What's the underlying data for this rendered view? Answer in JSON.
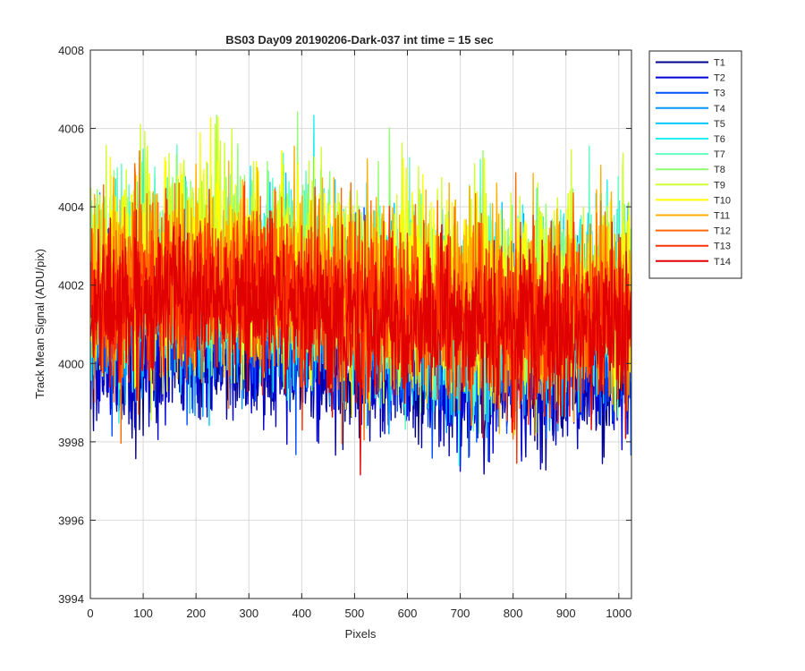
{
  "chart_data": {
    "type": "line",
    "title": "BS03 Day09 20190206-Dark-037 int time = 15 sec",
    "xlabel": "Pixels",
    "ylabel": "Track Mean Signal (ADU/pix)",
    "xlim": [
      0,
      1024
    ],
    "ylim": [
      3994,
      4008
    ],
    "xticks": [
      "0",
      "100",
      "200",
      "300",
      "400",
      "500",
      "600",
      "700",
      "800",
      "900",
      "1000"
    ],
    "yticks": [
      "3994",
      "3996",
      "3998",
      "4000",
      "4002",
      "4004",
      "4006",
      "4008"
    ],
    "grid": true,
    "legend_position": "outside-top-right",
    "n_points": 1024,
    "series": [
      {
        "name": "T1",
        "color": "#00008f",
        "mean": 3999.9,
        "noise": 0.85
      },
      {
        "name": "T2",
        "color": "#0000d6",
        "mean": 4000.0,
        "noise": 0.85
      },
      {
        "name": "T3",
        "color": "#0050ff",
        "mean": 4000.8,
        "noise": 0.95
      },
      {
        "name": "T4",
        "color": "#0096ff",
        "mean": 4001.2,
        "noise": 1.05
      },
      {
        "name": "T5",
        "color": "#00c8ff",
        "mean": 4001.6,
        "noise": 1.1
      },
      {
        "name": "T6",
        "color": "#20f0f0",
        "mean": 4001.8,
        "noise": 1.15
      },
      {
        "name": "T7",
        "color": "#60ffc0",
        "mean": 4002.0,
        "noise": 1.15
      },
      {
        "name": "T8",
        "color": "#90ff70",
        "mean": 4002.1,
        "noise": 1.2
      },
      {
        "name": "T9",
        "color": "#d0ff30",
        "mean": 4002.2,
        "noise": 1.2
      },
      {
        "name": "T10",
        "color": "#ffff00",
        "mean": 4002.1,
        "noise": 1.2
      },
      {
        "name": "T11",
        "color": "#ffb000",
        "mean": 4001.9,
        "noise": 1.15
      },
      {
        "name": "T12",
        "color": "#ff6a00",
        "mean": 4001.7,
        "noise": 1.1
      },
      {
        "name": "T13",
        "color": "#ff3000",
        "mean": 4001.5,
        "noise": 1.05
      },
      {
        "name": "T14",
        "color": "#e00000",
        "mean": 4001.2,
        "noise": 1.0
      }
    ]
  }
}
